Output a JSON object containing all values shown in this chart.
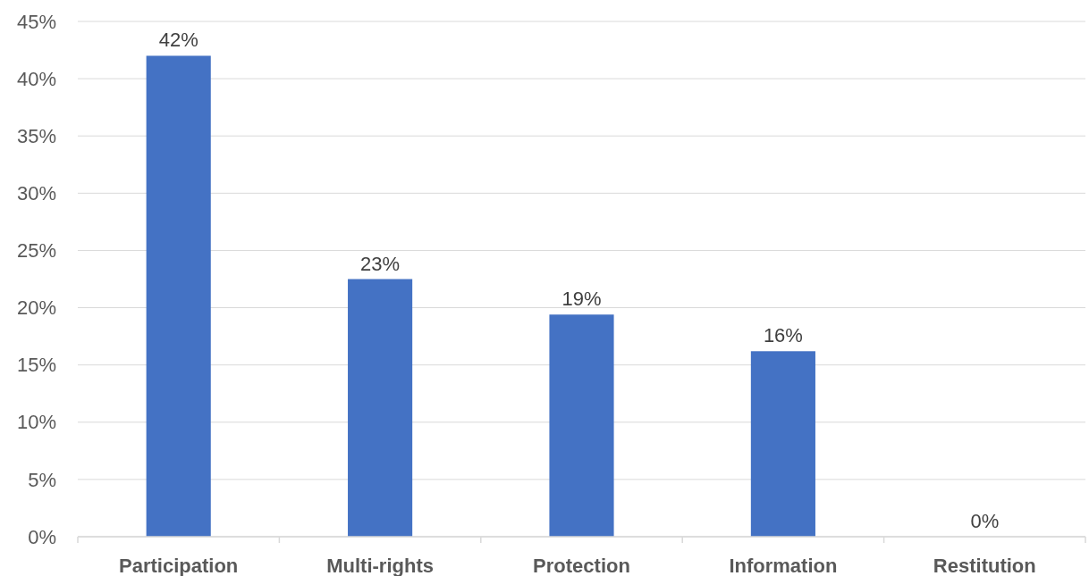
{
  "chart_data": {
    "type": "bar",
    "categories": [
      "Participation",
      "Multi-rights",
      "Protection",
      "Information",
      "Restitution"
    ],
    "values": [
      42,
      22.5,
      19.4,
      16.2,
      0
    ],
    "value_labels": [
      "42%",
      "23%",
      "19%",
      "16%",
      "0%"
    ],
    "color": "#4472c4",
    "ylim": [
      0,
      45
    ],
    "yticks": [
      {
        "value": 0,
        "label": "0%"
      },
      {
        "value": 5,
        "label": "5%"
      },
      {
        "value": 10,
        "label": "10%"
      },
      {
        "value": 15,
        "label": "15%"
      },
      {
        "value": 20,
        "label": "20%"
      },
      {
        "value": 25,
        "label": "25%"
      },
      {
        "value": 30,
        "label": "30%"
      },
      {
        "value": 35,
        "label": "35%"
      },
      {
        "value": 40,
        "label": "40%"
      },
      {
        "value": 45,
        "label": "45%"
      }
    ],
    "grid": "y"
  }
}
